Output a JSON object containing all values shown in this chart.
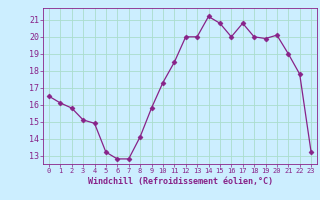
{
  "x": [
    0,
    1,
    2,
    3,
    4,
    5,
    6,
    7,
    8,
    9,
    10,
    11,
    12,
    13,
    14,
    15,
    16,
    17,
    18,
    19,
    20,
    21,
    22,
    23
  ],
  "y": [
    16.5,
    16.1,
    15.8,
    15.1,
    14.9,
    13.2,
    12.8,
    12.8,
    14.1,
    15.8,
    17.3,
    18.5,
    20.0,
    20.0,
    21.2,
    20.8,
    20.0,
    20.8,
    20.0,
    19.9,
    20.1,
    19.0,
    17.8,
    13.2
  ],
  "line_color": "#882288",
  "marker": "D",
  "marker_size": 2.5,
  "background_color": "#cceeff",
  "grid_color": "#aaddcc",
  "xlabel": "Windchill (Refroidissement éolien,°C)",
  "xlabel_color": "#882288",
  "tick_color": "#882288",
  "ylim": [
    12.5,
    21.7
  ],
  "yticks": [
    13,
    14,
    15,
    16,
    17,
    18,
    19,
    20,
    21
  ],
  "xlim": [
    -0.5,
    23.5
  ],
  "xticks": [
    0,
    1,
    2,
    3,
    4,
    5,
    6,
    7,
    8,
    9,
    10,
    11,
    12,
    13,
    14,
    15,
    16,
    17,
    18,
    19,
    20,
    21,
    22,
    23
  ]
}
